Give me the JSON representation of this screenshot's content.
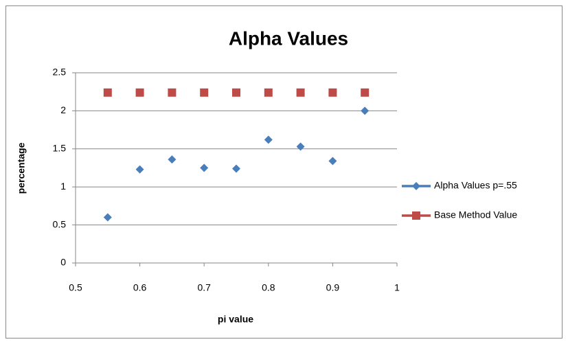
{
  "chart_data": {
    "type": "line",
    "title": "Alpha Values",
    "x_label": "pi value",
    "y_label": "percentage",
    "x": [
      0.55,
      0.6,
      0.65,
      0.7,
      0.75,
      0.8,
      0.85,
      0.9,
      0.95
    ],
    "series": [
      {
        "name": "Alpha Values p=.55",
        "color": "#4a7ebb",
        "marker": "diamond",
        "values": [
          0.6,
          1.23,
          1.36,
          1.25,
          1.24,
          1.62,
          1.53,
          1.34,
          2.0
        ]
      },
      {
        "name": "Base Method Value",
        "color": "#be4b48",
        "marker": "square",
        "values": [
          2.24,
          2.24,
          2.24,
          2.24,
          2.24,
          2.24,
          2.24,
          2.24,
          2.24
        ]
      }
    ],
    "xlim": [
      0.5,
      1
    ],
    "xticks": [
      0.5,
      0.6,
      0.7,
      0.8,
      0.9,
      1
    ],
    "ylim": [
      0,
      2.5
    ],
    "yticks": [
      0,
      0.5,
      1,
      1.5,
      2,
      2.5
    ],
    "grid": true,
    "legend": "right"
  }
}
